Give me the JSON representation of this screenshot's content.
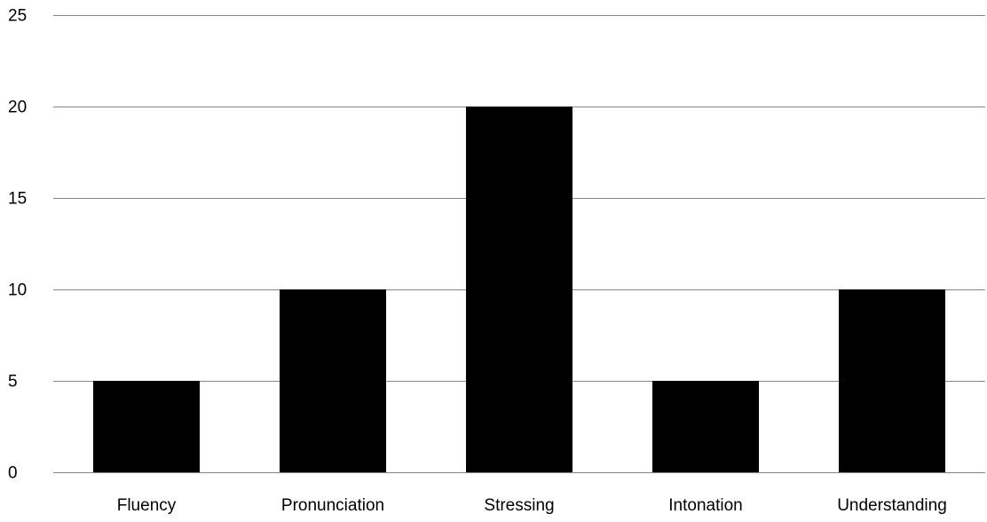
{
  "chart_data": {
    "type": "bar",
    "categories": [
      "Fluency",
      "Pronunciation",
      "Stressing",
      "Intonation",
      "Understanding"
    ],
    "values": [
      5,
      10,
      20,
      5,
      10
    ],
    "title": "",
    "xlabel": "",
    "ylabel": "",
    "ylim": [
      0,
      25
    ],
    "yticks": [
      0,
      5,
      10,
      15,
      20,
      25
    ],
    "grid": true,
    "legend": "none",
    "bar_color": "#000000",
    "grid_color": "#868686"
  }
}
